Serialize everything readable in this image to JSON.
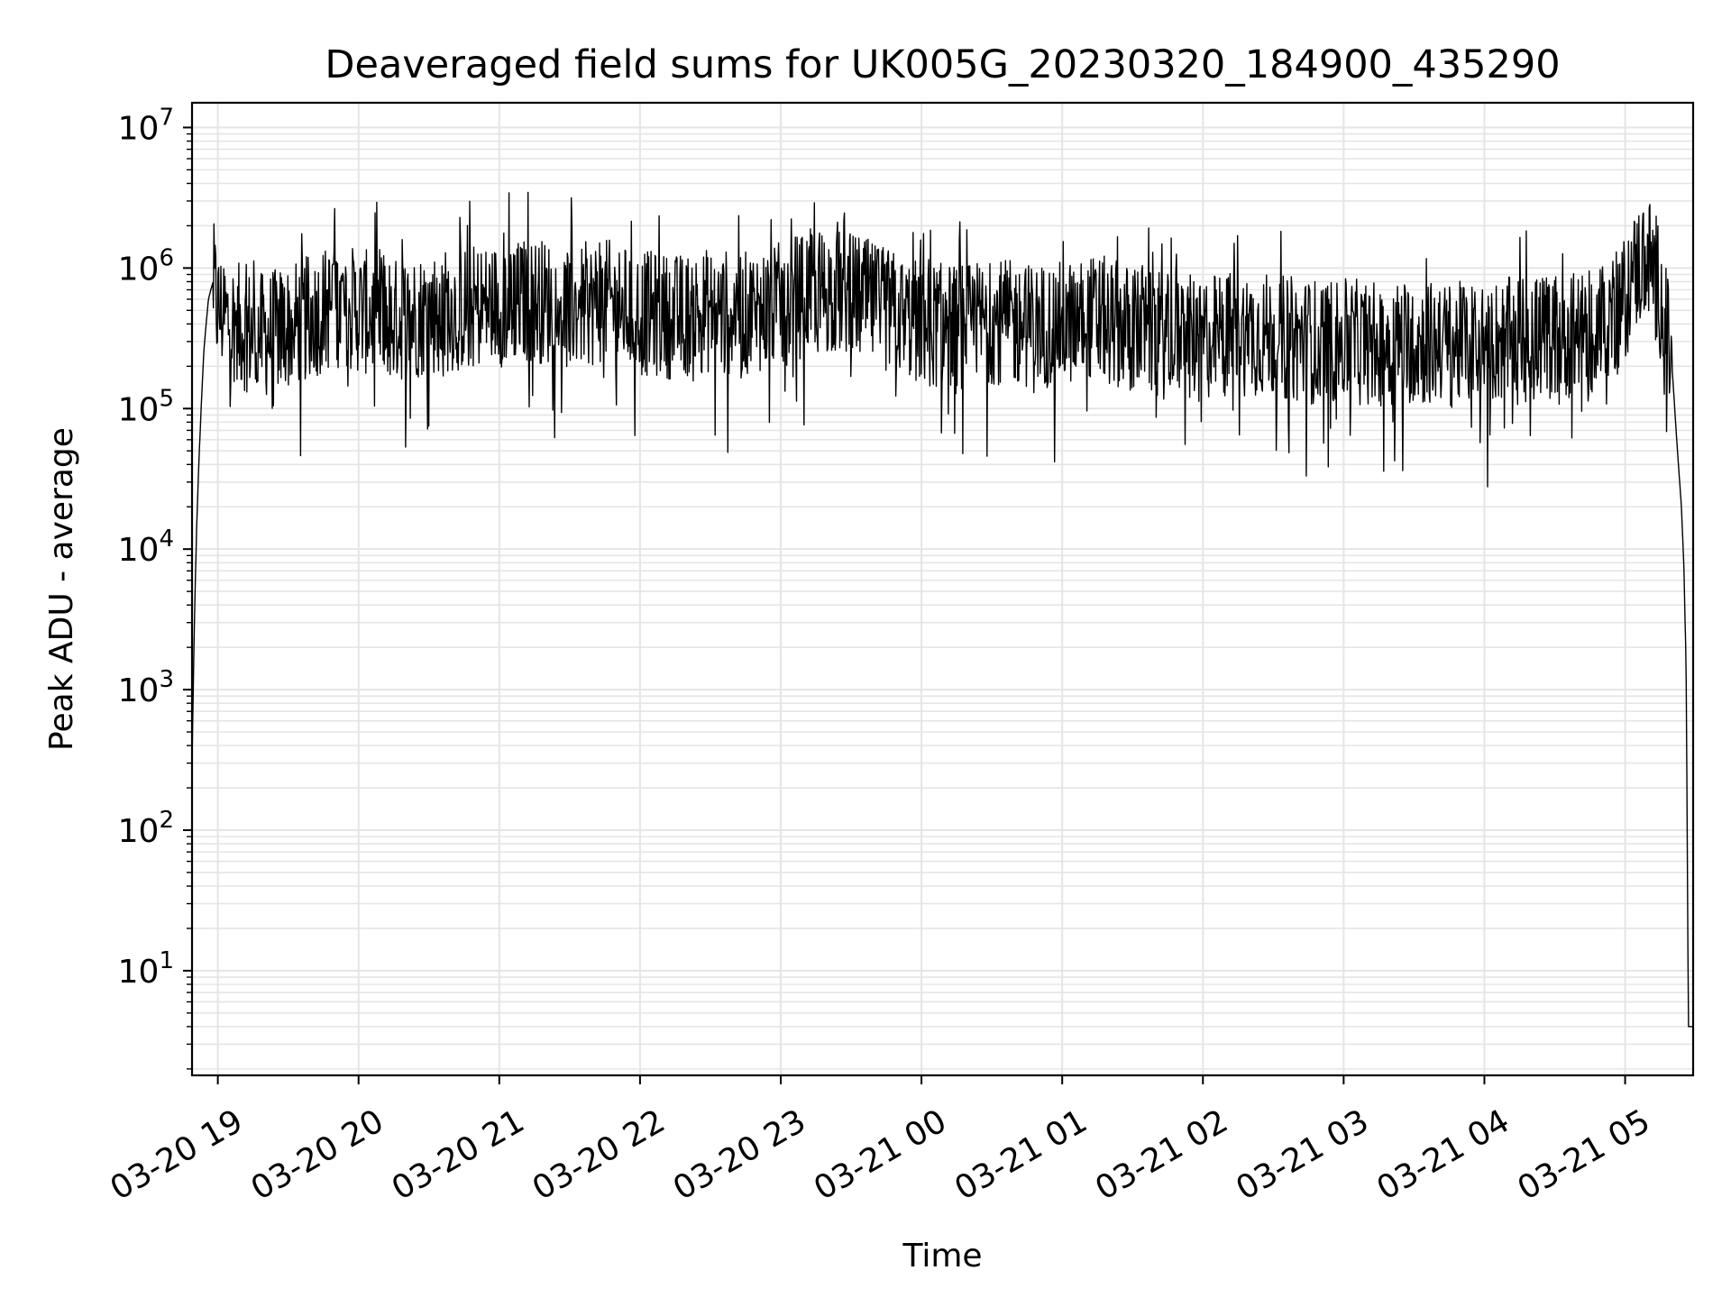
{
  "chart_data": {
    "type": "line",
    "title": "Deaveraged field sums for UK005G_20230320_184900_435290",
    "xlabel": "Time",
    "ylabel": "Peak ADU - average",
    "yscale": "log",
    "ylim": [
      1.8,
      15000000
    ],
    "xlim": [
      "2023-03-20 18:49",
      "2023-03-21 05:29"
    ],
    "grid": true,
    "line_color": "#000000",
    "grid_color": "#e5e5e5",
    "x_ticks": [
      {
        "t": "2023-03-20 19:00",
        "label": "03-20 19"
      },
      {
        "t": "2023-03-20 20:00",
        "label": "03-20 20"
      },
      {
        "t": "2023-03-20 21:00",
        "label": "03-20 21"
      },
      {
        "t": "2023-03-20 22:00",
        "label": "03-20 22"
      },
      {
        "t": "2023-03-20 23:00",
        "label": "03-20 23"
      },
      {
        "t": "2023-03-21 00:00",
        "label": "03-21 00"
      },
      {
        "t": "2023-03-21 01:00",
        "label": "03-21 01"
      },
      {
        "t": "2023-03-21 02:00",
        "label": "03-21 02"
      },
      {
        "t": "2023-03-21 03:00",
        "label": "03-21 03"
      },
      {
        "t": "2023-03-21 04:00",
        "label": "03-21 04"
      },
      {
        "t": "2023-03-21 05:00",
        "label": "03-21 05"
      }
    ],
    "y_ticks": [
      {
        "value": 10,
        "base": "10",
        "exp": "1"
      },
      {
        "value": 100,
        "base": "10",
        "exp": "2"
      },
      {
        "value": 1000,
        "base": "10",
        "exp": "3"
      },
      {
        "value": 10000,
        "base": "10",
        "exp": "4"
      },
      {
        "value": 100000,
        "base": "10",
        "exp": "5"
      },
      {
        "value": 1000000,
        "base": "10",
        "exp": "6"
      },
      {
        "value": 10000000,
        "base": "10",
        "exp": "7"
      }
    ],
    "series": [
      {
        "x": [
          "2023-03-20 18:49",
          "2023-03-20 18:50",
          "2023-03-20 18:51",
          "2023-03-20 18:52",
          "2023-03-20 18:53",
          "2023-03-20 18:54",
          "2023-03-20 18:55",
          "2023-03-20 18:56",
          "2023-03-20 18:57",
          "2023-03-20 18:58",
          "2023-03-20 19:00",
          "2023-03-20 19:05",
          "2023-03-20 19:10",
          "2023-03-20 19:15",
          "2023-03-20 19:20",
          "2023-03-20 19:30",
          "2023-03-20 19:40",
          "2023-03-20 19:50",
          "2023-03-20 20:00",
          "2023-03-20 20:15",
          "2023-03-20 20:30",
          "2023-03-20 20:45",
          "2023-03-20 21:00",
          "2023-03-20 21:15",
          "2023-03-20 21:30",
          "2023-03-20 21:45",
          "2023-03-20 22:00",
          "2023-03-20 22:15",
          "2023-03-20 22:30",
          "2023-03-20 22:45",
          "2023-03-20 23:00",
          "2023-03-20 23:15",
          "2023-03-20 23:30",
          "2023-03-20 23:45",
          "2023-03-21 00:00",
          "2023-03-21 00:15",
          "2023-03-21 00:30",
          "2023-03-21 00:45",
          "2023-03-21 01:00",
          "2023-03-21 01:15",
          "2023-03-21 01:30",
          "2023-03-21 01:45",
          "2023-03-21 02:00",
          "2023-03-21 02:15",
          "2023-03-21 02:30",
          "2023-03-21 02:45",
          "2023-03-21 03:00",
          "2023-03-21 03:15",
          "2023-03-21 03:30",
          "2023-03-21 03:45",
          "2023-03-21 04:00",
          "2023-03-21 04:15",
          "2023-03-21 04:30",
          "2023-03-21 04:45",
          "2023-03-21 05:00",
          "2023-03-21 05:05",
          "2023-03-21 05:10",
          "2023-03-21 05:14",
          "2023-03-21 05:17",
          "2023-03-21 05:20",
          "2023-03-21 05:22",
          "2023-03-21 05:24",
          "2023-03-21 05:25",
          "2023-03-21 05:26",
          "2023-03-21 05:27",
          "2023-03-21 05:28",
          "2023-03-21 05:29"
        ],
        "y": [
          300,
          3000,
          15000,
          45000,
          110000,
          250000,
          400000,
          600000,
          700000,
          800000,
          500000,
          420000,
          380000,
          350000,
          330000,
          380000,
          450000,
          550000,
          500000,
          420000,
          480000,
          520000,
          550000,
          600000,
          520000,
          580000,
          480000,
          450000,
          500000,
          470000,
          550000,
          700000,
          650000,
          500000,
          400000,
          380000,
          420000,
          390000,
          400000,
          450000,
          370000,
          320000,
          320000,
          350000,
          330000,
          300000,
          300000,
          290000,
          300000,
          280000,
          300000,
          310000,
          330000,
          340000,
          600000,
          1000000,
          1200000,
          800000,
          400000,
          200000,
          60000,
          20000,
          8000,
          1500,
          4,
          4,
          4
        ]
      }
    ]
  }
}
